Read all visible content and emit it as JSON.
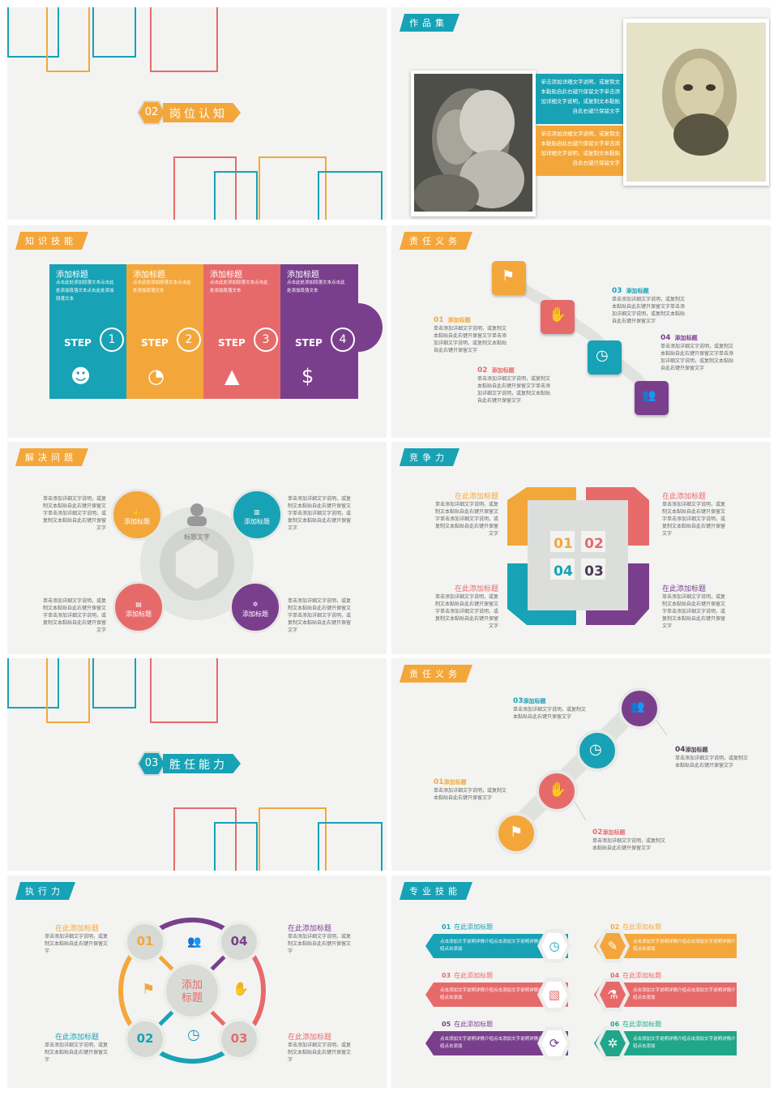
{
  "colors": {
    "teal": "#17a2b5",
    "orange": "#f3a73b",
    "red": "#e76a6b",
    "purple": "#7a3f8c",
    "green": "#20a68a",
    "bg": "#f3f4f2"
  },
  "s1": {
    "num": "02",
    "title": "岗位认知"
  },
  "s2": {
    "tag": "作品集",
    "text1": "单击添加详细文字说明，或复制文本黏贴自此右键只保留文字单击添加详细文字说明，或复制文本黏贴自此右键只保留文字",
    "text2": "单击添加详细文字说明，或复制文本黏贴自此右键只保留文字单击添加详细文字说明，或复制文本黏贴自此右键只保留文字"
  },
  "s3": {
    "tag": "知识技能",
    "steps": [
      {
        "title": "添加标题",
        "text": "点击此处添加段落文本点击此处添加段落文本点击此处添加段落文本",
        "step": "STEP",
        "num": "1",
        "icon": "person-icon"
      },
      {
        "title": "添加标题",
        "text": "点击此处添加段落文本点击此处添加段落文本",
        "step": "STEP",
        "num": "2",
        "icon": "pie-icon"
      },
      {
        "title": "添加标题",
        "text": "点击此处添加段落文本点击此处添加段落文本",
        "step": "STEP",
        "num": "3",
        "icon": "growth-icon"
      },
      {
        "title": "添加标题",
        "text": "点击此处添加段落文本点击此处添加段落文本",
        "step": "STEP",
        "num": "4",
        "icon": "money-icon"
      }
    ]
  },
  "s4": {
    "tag": "责任义务",
    "items": [
      {
        "num": "01",
        "label": "添加标题",
        "text": "单击添加详细文字说明，或复制文本黏贴自此右键只保留文字单击添加详细文字说明，或复制文本黏贴自此右键只保留文字"
      },
      {
        "num": "02",
        "label": "添加标题",
        "text": "单击添加详细文字说明，或复制文本黏贴自此右键只保留文字单击添加详细文字说明，或复制文本黏贴自此右键只保留文字"
      },
      {
        "num": "03",
        "label": "添加标题",
        "text": "单击添加详细文字说明，或复制文本黏贴自此右键只保留文字单击添加详细文字说明，或复制文本黏贴自此右键只保留文字"
      },
      {
        "num": "04",
        "label": "添加标题",
        "text": "单击添加详细文字说明，或复制文本黏贴自此右键只保留文字单击添加详细文字说明，或复制文本黏贴自此右键只保留文字"
      }
    ]
  },
  "s5": {
    "tag": "解决问题",
    "center": "标题文字",
    "bubble": "添加标题",
    "text": "单击添加详细文字说明，或复制文本黏贴自此右键只保留文字单击添加详细文字说明，或复制文本黏贴自此右键只保留文字"
  },
  "s6": {
    "tag": "竞争力",
    "title": "在此添加标题",
    "text": "单击添加详细文字说明，或复制文本黏贴自此右键只保留文字单击添加详细文字说明，或复制文本黏贴自此右键只保留文字",
    "nums": [
      "01",
      "02",
      "04",
      "03"
    ]
  },
  "s7": {
    "num": "03",
    "title": "胜任能力"
  },
  "s8": {
    "tag": "责任义务",
    "items": [
      {
        "num": "01",
        "label": "添加标题",
        "text": "单击添加详细文字说明，或复制文本黏贴自此右键只保留文字"
      },
      {
        "num": "02",
        "label": "添加标题",
        "text": "单击添加详细文字说明，或复制文本黏贴自此右键只保留文字"
      },
      {
        "num": "03",
        "label": "添加标题",
        "text": "单击添加详细文字说明，或复制文本黏贴自此右键只保留文字"
      },
      {
        "num": "04",
        "label": "添加标题",
        "text": "单击添加详细文字说明，或复制文本黏贴自此右键只保留文字"
      }
    ]
  },
  "s9": {
    "tag": "执行力",
    "title": "在此添加标题",
    "text": "单击添加详细文字说明，或复制文本黏贴自此右键只保留文字",
    "center": "添加标题",
    "nums": [
      "01",
      "04",
      "02",
      "03"
    ]
  },
  "s10": {
    "tag": "专业技能",
    "items": [
      {
        "num": "01",
        "title": "在此添加标题",
        "text": "点击添加文字说明详情介绍点击添加文字说明详情介绍点击添加"
      },
      {
        "num": "02",
        "title": "在此添加标题",
        "text": "点击添加文字说明详情介绍点击添加文字说明详情介绍点击添加"
      },
      {
        "num": "03",
        "title": "在此添加标题",
        "text": "点击添加文字说明详情介绍点击添加文字说明详情介绍点击添加"
      },
      {
        "num": "04",
        "title": "在此添加标题",
        "text": "点击添加文字说明详情介绍点击添加文字说明详情介绍点击添加"
      },
      {
        "num": "05",
        "title": "在此添加标题",
        "text": "点击添加文字说明详情介绍点击添加文字说明详情介绍点击添加"
      },
      {
        "num": "06",
        "title": "在此添加标题",
        "text": "点击添加文字说明详情介绍点击添加文字说明详情介绍点击添加"
      }
    ]
  }
}
